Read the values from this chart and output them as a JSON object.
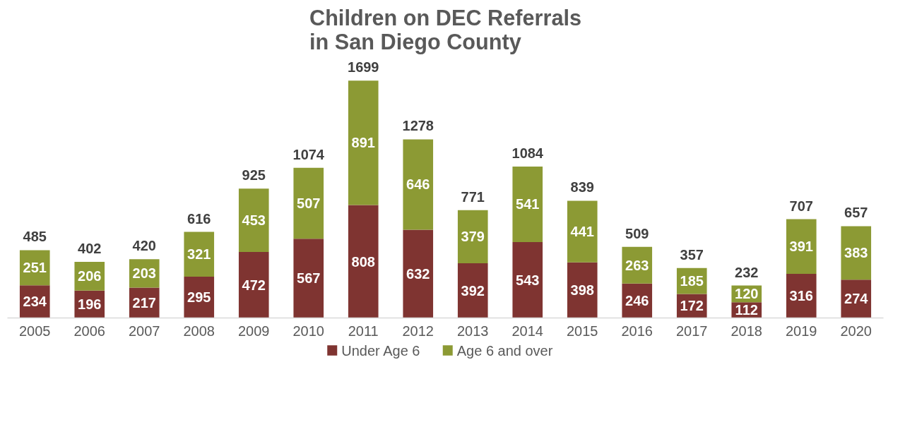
{
  "chart_data": {
    "type": "bar",
    "title": "Children on DEC Referrals\nin San Diego County",
    "categories": [
      "2005",
      "2006",
      "2007",
      "2008",
      "2009",
      "2010",
      "2011",
      "2012",
      "2013",
      "2014",
      "2015",
      "2016",
      "2017",
      "2018",
      "2019",
      "2020"
    ],
    "stacked": true,
    "series": [
      {
        "name": "Under Age 6",
        "color": "#7f3431",
        "values": [
          234,
          196,
          217,
          295,
          472,
          567,
          808,
          632,
          392,
          543,
          398,
          246,
          172,
          112,
          316,
          274
        ]
      },
      {
        "name": "Age 6 and over",
        "color": "#8c9a34",
        "values": [
          251,
          206,
          203,
          321,
          453,
          507,
          891,
          646,
          379,
          541,
          441,
          263,
          185,
          120,
          391,
          383
        ]
      }
    ],
    "totals": [
      "485",
      "402",
      "420",
      "616",
      "925",
      "1074",
      "1699",
      "1278",
      "771",
      "1084",
      "839",
      "509",
      "357",
      "232",
      "707",
      "657"
    ],
    "data_labels": true,
    "legend": "bottom",
    "grid": false,
    "tick_labels": "x"
  }
}
